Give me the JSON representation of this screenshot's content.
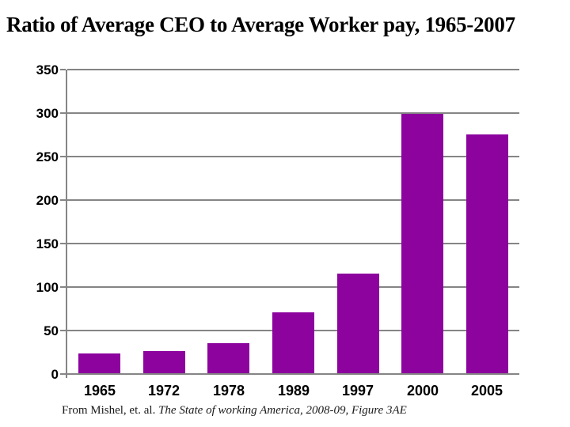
{
  "slide": {
    "title": "Ratio of Average CEO to Average Worker pay, 1965-2007",
    "footnote_plain": "From Mishel, et. al. ",
    "footnote_italic": "The State of working America, 2008-09, Figure 3AE"
  },
  "chart_data": {
    "type": "bar",
    "title": "Ratio of Average CEO to Average Worker pay, 1965-2007",
    "categories": [
      "1965",
      "1972",
      "1978",
      "1989",
      "1997",
      "2000",
      "2005"
    ],
    "values": [
      24,
      26,
      35,
      71,
      115,
      299,
      275
    ],
    "xlabel": "",
    "ylabel": "",
    "ylim": [
      0,
      350
    ],
    "yticks": [
      0,
      50,
      100,
      150,
      200,
      250,
      300,
      350
    ],
    "grid": true,
    "legend": false,
    "bar_color": "#8C039E",
    "grid_color": "#858585",
    "axis_color": "#858585",
    "tick_label_color": "#000000",
    "source_note": "From Mishel, et. al. The State of working America, 2008-09, Figure 3AE"
  }
}
